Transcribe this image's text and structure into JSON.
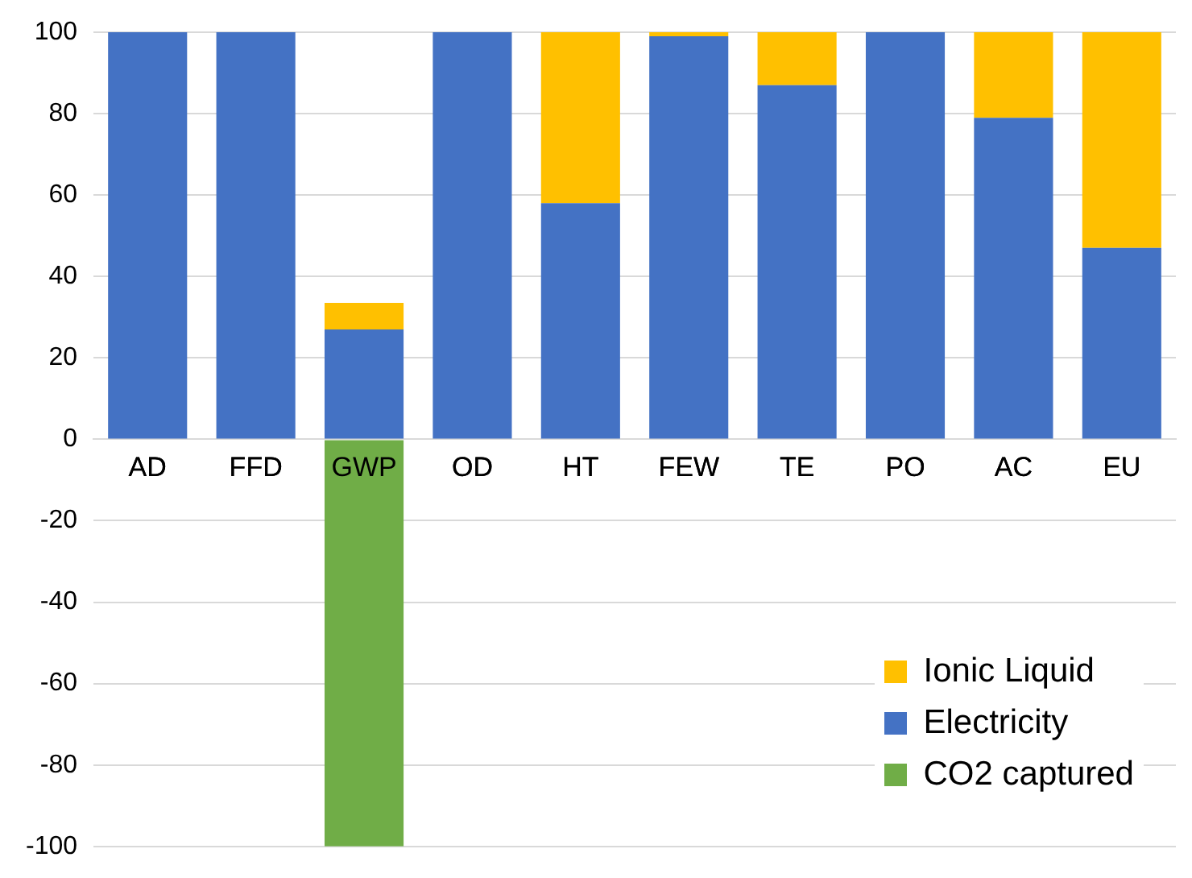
{
  "chart_data": {
    "type": "bar",
    "categories": [
      "AD",
      "FFD",
      "GWP",
      "OD",
      "HT",
      "FEW",
      "TE",
      "PO",
      "AC",
      "EU"
    ],
    "series": [
      {
        "name": "Electricity",
        "color": "#4472c4",
        "values": [
          100,
          100,
          27,
          100,
          58,
          99,
          87,
          100,
          79,
          47
        ]
      },
      {
        "name": "Ionic Liquid",
        "color": "#ffc000",
        "values": [
          0,
          0,
          6.5,
          0,
          42,
          1,
          13,
          0,
          21,
          53
        ]
      },
      {
        "name": "CO2 captured",
        "color": "#70ad47",
        "values": [
          null,
          null,
          -100,
          null,
          null,
          null,
          null,
          null,
          null,
          null
        ]
      }
    ],
    "stacked": true,
    "ylim": [
      -100,
      100
    ],
    "yticks": [
      -100,
      -80,
      -60,
      -40,
      -20,
      0,
      20,
      40,
      60,
      80,
      100
    ],
    "grid": "y",
    "legend": "bottom right"
  }
}
